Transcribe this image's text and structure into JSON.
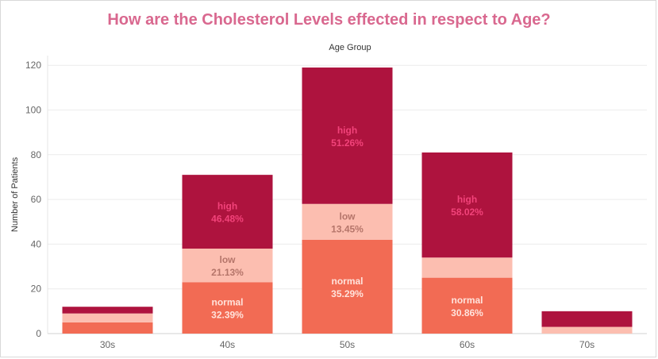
{
  "chart_data": {
    "type": "bar",
    "stacked": true,
    "title": "How are the Cholesterol Levels effected in respect to Age?",
    "top_label": "Age Group",
    "ylabel": "Number of Patients",
    "ylim": [
      0,
      125
    ],
    "yticks": [
      0,
      20,
      40,
      60,
      80,
      100,
      120
    ],
    "categories": [
      "30s",
      "40s",
      "50s",
      "60s",
      "70s"
    ],
    "grid": "horizontal",
    "series": [
      {
        "name": "normal",
        "color": "#f26b54",
        "label_color": "#ffe3dc",
        "values": [
          5,
          23,
          42,
          25,
          0
        ],
        "labels": [
          "",
          "32.39%",
          "35.29%",
          "30.86%",
          ""
        ]
      },
      {
        "name": "low",
        "color": "#fcbeb0",
        "label_color": "#b5756a",
        "values": [
          4,
          15,
          16,
          9,
          3
        ],
        "labels": [
          "",
          "21.13%",
          "13.45%",
          "",
          ""
        ]
      },
      {
        "name": "high",
        "color": "#ae133e",
        "label_color": "#f2437a",
        "values": [
          3,
          33,
          61,
          47,
          7
        ],
        "labels": [
          "",
          "46.48%",
          "51.26%",
          "58.02%",
          ""
        ]
      }
    ]
  }
}
